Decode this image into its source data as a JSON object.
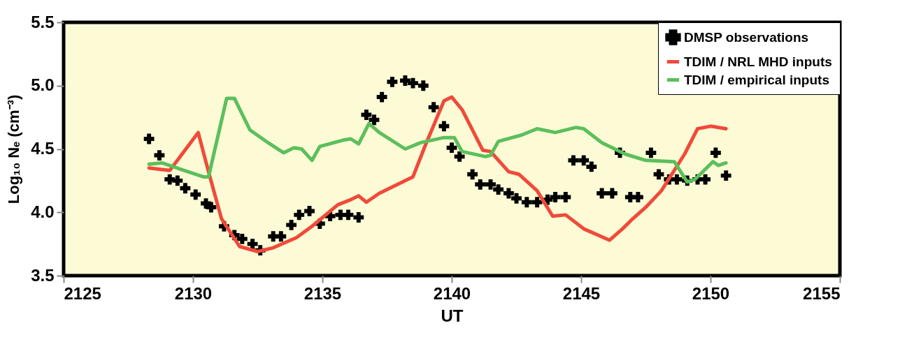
{
  "chart_data": {
    "type": "line",
    "xlabel": "UT",
    "ylabel": "Log₁₀ Nₑ (cm⁻³)",
    "xlim": [
      2125,
      2155
    ],
    "xticks": [
      2125,
      2130,
      2135,
      2140,
      2145,
      2150,
      2155
    ],
    "ylim": [
      3.5,
      5.5
    ],
    "yticks": [
      {
        "value": 3.5,
        "label": "3.5"
      },
      {
        "value": 4,
        "label": "4.0"
      },
      {
        "value": 4.5,
        "label": "4.5"
      },
      {
        "value": 5,
        "label": "5.0"
      },
      {
        "value": 5.5,
        "label": "5.5"
      }
    ],
    "grid": false,
    "legend": "top right",
    "series": [
      {
        "name": "DMSP observations",
        "type": "scatter",
        "marker": "cross",
        "color": "#000000",
        "x": [
          2128.3,
          2128.7,
          2129.1,
          2129.4,
          2129.7,
          2130.1,
          2130.5,
          2130.7,
          2131.2,
          2131.6,
          2131.9,
          2132.3,
          2132.6,
          2133.1,
          2133.4,
          2133.8,
          2134.1,
          2134.5,
          2134.9,
          2135.3,
          2135.7,
          2136.0,
          2136.4,
          2136.7,
          2137.0,
          2137.3,
          2137.7,
          2138.2,
          2138.5,
          2138.9,
          2139.3,
          2139.7,
          2140.0,
          2140.3,
          2140.8,
          2141.1,
          2141.5,
          2141.8,
          2142.2,
          2142.5,
          2142.9,
          2143.3,
          2143.7,
          2144.0,
          2144.4,
          2144.7,
          2145.1,
          2145.4,
          2145.8,
          2146.2,
          2146.5,
          2146.9,
          2147.2,
          2147.7,
          2148.0,
          2148.4,
          2148.7,
          2149.1,
          2149.5,
          2149.8,
          2150.2,
          2150.6
        ],
        "values": [
          4.58,
          4.45,
          4.26,
          4.25,
          4.19,
          4.14,
          4.07,
          4.04,
          3.89,
          3.82,
          3.79,
          3.75,
          3.7,
          3.81,
          3.81,
          3.9,
          3.98,
          4.01,
          3.91,
          3.97,
          3.98,
          3.98,
          3.96,
          4.77,
          4.73,
          4.91,
          5.03,
          5.04,
          5.02,
          5.0,
          4.83,
          4.68,
          4.51,
          4.44,
          4.3,
          4.22,
          4.22,
          4.18,
          4.15,
          4.11,
          4.08,
          4.08,
          4.1,
          4.12,
          4.12,
          4.41,
          4.41,
          4.36,
          4.15,
          4.15,
          4.47,
          4.12,
          4.12,
          4.47,
          4.3,
          4.26,
          4.26,
          4.25,
          4.26,
          4.26,
          4.47,
          4.29
        ]
      },
      {
        "name": "TDIM / NRL MHD inputs",
        "line_style": "solid",
        "color": "#f04a3a",
        "x": [
          2128.3,
          2129.1,
          2130.2,
          2130.6,
          2131.1,
          2131.8,
          2132.5,
          2133.1,
          2134.0,
          2134.6,
          2135.6,
          2136.1,
          2136.4,
          2136.7,
          2137.2,
          2138.5,
          2139.0,
          2139.7,
          2140.0,
          2140.4,
          2141.2,
          2141.5,
          2142.2,
          2142.6,
          2143.3,
          2143.9,
          2144.4,
          2145.1,
          2146.1,
          2146.6,
          2147.0,
          2147.5,
          2148.1,
          2149.0,
          2149.5,
          2150.0,
          2150.6
        ],
        "values": [
          4.35,
          4.33,
          4.63,
          4.32,
          3.95,
          3.73,
          3.69,
          3.72,
          3.8,
          3.89,
          4.06,
          4.1,
          4.13,
          4.08,
          4.15,
          4.28,
          4.54,
          4.88,
          4.91,
          4.81,
          4.49,
          4.48,
          4.32,
          4.3,
          4.17,
          3.97,
          3.98,
          3.87,
          3.78,
          3.87,
          3.95,
          4.04,
          4.17,
          4.46,
          4.66,
          4.68,
          4.66
        ]
      },
      {
        "name": "TDIM / empirical inputs",
        "line_style": "solid",
        "color": "#5cbf5c",
        "x": [
          2128.3,
          2128.8,
          2130.4,
          2130.6,
          2131.3,
          2131.6,
          2132.2,
          2132.9,
          2133.5,
          2133.9,
          2134.2,
          2134.6,
          2134.9,
          2135.8,
          2136.1,
          2136.4,
          2136.8,
          2137.2,
          2138.2,
          2138.8,
          2139.7,
          2140.1,
          2140.4,
          2141.3,
          2141.5,
          2141.8,
          2142.7,
          2143.3,
          2144.0,
          2144.8,
          2145.1,
          2145.8,
          2146.7,
          2147.5,
          2148.6,
          2149.1,
          2149.4,
          2150.1,
          2150.3,
          2150.6
        ],
        "values": [
          4.38,
          4.39,
          4.28,
          4.28,
          4.9,
          4.9,
          4.65,
          4.55,
          4.47,
          4.51,
          4.5,
          4.41,
          4.52,
          4.57,
          4.58,
          4.54,
          4.7,
          4.63,
          4.5,
          4.55,
          4.59,
          4.59,
          4.48,
          4.44,
          4.45,
          4.56,
          4.61,
          4.66,
          4.63,
          4.67,
          4.66,
          4.55,
          4.46,
          4.41,
          4.4,
          4.24,
          4.26,
          4.4,
          4.37,
          4.39
        ]
      }
    ]
  }
}
